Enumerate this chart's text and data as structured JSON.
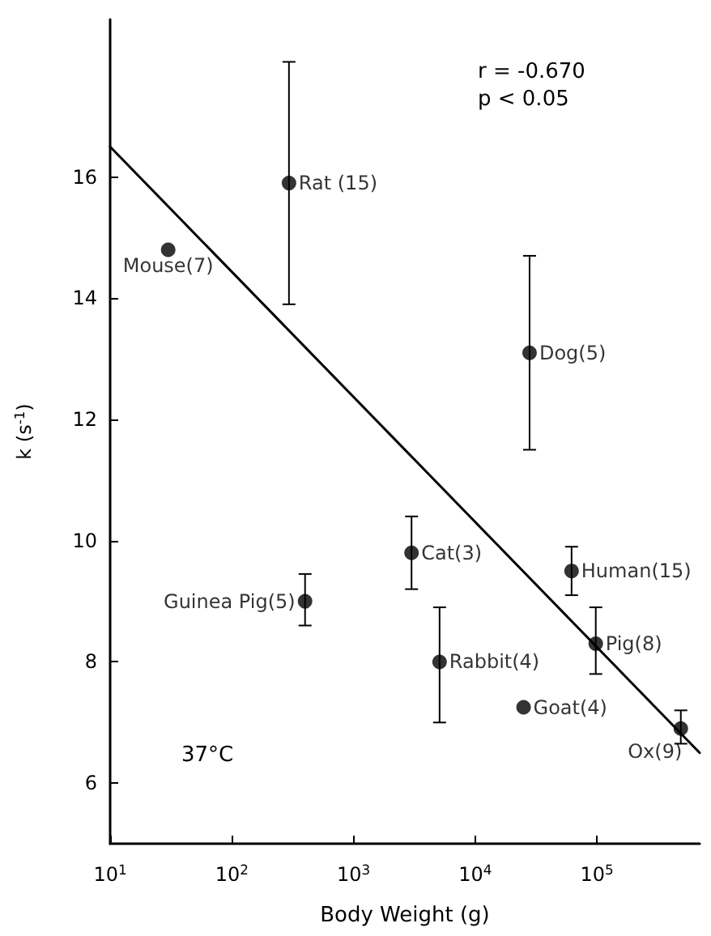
{
  "chart_data": {
    "type": "scatter",
    "xlabel": "Body Weight (g)",
    "ylabel": "k (s$^{-1}$)",
    "log": "x",
    "xlim": [
      10,
      700000
    ],
    "ylim": [
      5,
      18.6
    ],
    "xticks": [
      {
        "value": 10,
        "label": "10$^{1}$"
      },
      {
        "value": 100,
        "label": "10$^{2}$"
      },
      {
        "value": 1000,
        "label": "10$^{3}$"
      },
      {
        "value": 10000,
        "label": "10$^{4}$"
      },
      {
        "value": 100000,
        "label": "10$^{5}$"
      }
    ],
    "yticks": [
      6,
      8,
      10,
      12,
      14,
      16
    ],
    "grid": false,
    "marker": "circle",
    "series": [
      {
        "color": "#000000",
        "x": [
          30,
          295,
          400,
          3000,
          5100,
          25000,
          28000,
          62000,
          98000,
          490000
        ],
        "values": [
          14.8,
          15.9,
          9.0,
          9.8,
          8.0,
          7.25,
          13.1,
          9.5,
          8.3,
          6.9
        ],
        "errors": [
          null,
          [
            13.9,
            17.9
          ],
          [
            8.6,
            9.45
          ],
          [
            9.2,
            10.4
          ],
          [
            7.0,
            8.9
          ],
          null,
          [
            11.5,
            14.7
          ],
          [
            9.1,
            9.9
          ],
          [
            7.8,
            8.9
          ],
          [
            6.65,
            7.2
          ]
        ]
      },
      {
        "type": "line",
        "color": "#000000",
        "marker": "none",
        "x": [
          10,
          700000
        ],
        "values": [
          16.5,
          6.5
        ]
      }
    ],
    "annotations": [
      {
        "text": "Mouse(7)",
        "x": 30,
        "y": 14.8
      },
      {
        "text": "Rat (15)",
        "x": 295,
        "y": 15.9
      },
      {
        "text": "Guinea Pig(5)",
        "x": 400,
        "y": 9.0
      },
      {
        "text": "Cat(3)",
        "x": 3000,
        "y": 9.8
      },
      {
        "text": "Rabbit(4)",
        "x": 5100,
        "y": 8.0
      },
      {
        "text": "Goat(4)",
        "x": 25000,
        "y": 7.25
      },
      {
        "text": "Dog(5)",
        "x": 28000,
        "y": 13.1
      },
      {
        "text": "Human(15)",
        "x": 62000,
        "y": 9.5
      },
      {
        "text": "Pig(8)",
        "x": 98000,
        "y": 8.3
      },
      {
        "text": "Ox(9)",
        "x": 490000,
        "y": 6.9
      },
      "r = -0.670",
      "p < 0.05",
      "37°C"
    ]
  }
}
